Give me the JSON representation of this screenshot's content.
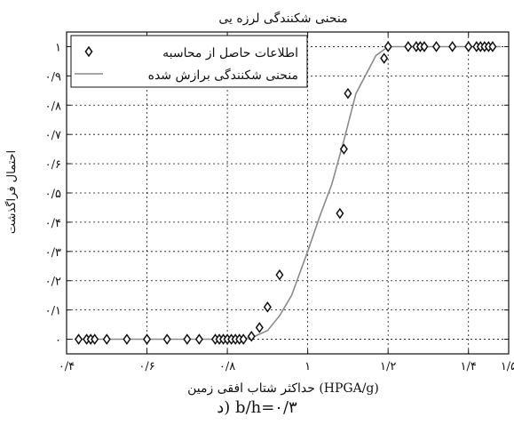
{
  "chart_data": {
    "type": "scatter",
    "title": "منحنی شکنندگی لرزه یی",
    "xlabel": "حداکثر شتاب افقی زمین (HPGA/g)",
    "ylabel": "احتمال فراگذشت",
    "xlim": [
      0.4,
      1.5
    ],
    "ylim": [
      -0.05,
      1.05
    ],
    "grid": true,
    "legend": {
      "placement": "top-left"
    },
    "x_ticks": [
      0.4,
      0.6,
      0.8,
      1.0,
      1.2,
      1.4,
      1.5
    ],
    "x_tick_labels": [
      "۰/۴",
      "۰/۶",
      "۰/۸",
      "۱",
      "۱/۲",
      "۱/۴",
      "۱/۵"
    ],
    "y_ticks": [
      0,
      0.1,
      0.2,
      0.3,
      0.4,
      0.5,
      0.6,
      0.7,
      0.8,
      0.9,
      1.0
    ],
    "y_tick_labels": [
      "۰",
      "۰/۱",
      "۰/۲",
      "۰/۳",
      "۰/۴",
      "۰/۵",
      "۰/۶",
      "۰/۷",
      "۰/۸",
      "۰/۹",
      "۱"
    ],
    "series": [
      {
        "name": "اطلاعات حاصل از محاسبه",
        "kind": "markers",
        "marker": "diamond",
        "color": "#111111",
        "points": [
          [
            0.43,
            0
          ],
          [
            0.45,
            0
          ],
          [
            0.46,
            0
          ],
          [
            0.47,
            0
          ],
          [
            0.5,
            0
          ],
          [
            0.55,
            0
          ],
          [
            0.6,
            0
          ],
          [
            0.65,
            0
          ],
          [
            0.7,
            0
          ],
          [
            0.73,
            0
          ],
          [
            0.77,
            0
          ],
          [
            0.78,
            0
          ],
          [
            0.79,
            0
          ],
          [
            0.8,
            0
          ],
          [
            0.81,
            0
          ],
          [
            0.82,
            0
          ],
          [
            0.83,
            0
          ],
          [
            0.84,
            0
          ],
          [
            0.86,
            0.01
          ],
          [
            0.88,
            0.04
          ],
          [
            0.9,
            0.11
          ],
          [
            0.93,
            0.22
          ],
          [
            1.08,
            0.43
          ],
          [
            1.09,
            0.65
          ],
          [
            1.1,
            0.84
          ],
          [
            1.19,
            0.96
          ],
          [
            1.2,
            1.0
          ],
          [
            1.25,
            1.0
          ],
          [
            1.27,
            1.0
          ],
          [
            1.28,
            1.0
          ],
          [
            1.29,
            1.0
          ],
          [
            1.32,
            1.0
          ],
          [
            1.36,
            1.0
          ],
          [
            1.4,
            1.0
          ],
          [
            1.42,
            1.0
          ],
          [
            1.43,
            1.0
          ],
          [
            1.44,
            1.0
          ],
          [
            1.45,
            1.0
          ],
          [
            1.46,
            1.0
          ]
        ]
      },
      {
        "name": "منحنی شکنندگی برازش شده",
        "kind": "line",
        "color": "#8a8a8a",
        "points": [
          [
            0.42,
            0
          ],
          [
            0.8,
            0
          ],
          [
            0.86,
            0.005
          ],
          [
            0.9,
            0.03
          ],
          [
            0.93,
            0.08
          ],
          [
            0.96,
            0.15
          ],
          [
            1.0,
            0.3
          ],
          [
            1.03,
            0.42
          ],
          [
            1.06,
            0.53
          ],
          [
            1.09,
            0.68
          ],
          [
            1.12,
            0.84
          ],
          [
            1.17,
            0.97
          ],
          [
            1.2,
            1.0
          ],
          [
            1.48,
            1.0
          ]
        ]
      }
    ]
  },
  "caption": "د) b/h=۰/۳"
}
